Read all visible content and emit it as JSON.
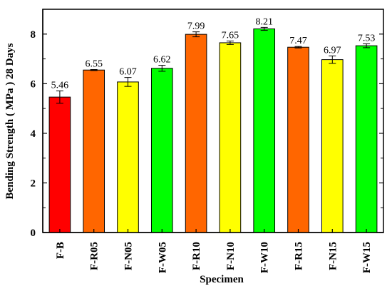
{
  "chart_data": {
    "type": "bar",
    "title": "",
    "xlabel": "Specimen",
    "ylabel": "Bending Strength ( MPa ) 28 Days",
    "ylim": [
      0,
      9
    ],
    "yticks": [
      0,
      2,
      4,
      6,
      8
    ],
    "grid": false,
    "categories": [
      "F-B",
      "F-R05",
      "F-N05",
      "F-W05",
      "F-R10",
      "F-N10",
      "F-W10",
      "F-R15",
      "F-N15",
      "F-W15"
    ],
    "values": [
      5.46,
      6.55,
      6.07,
      6.62,
      7.99,
      7.65,
      8.21,
      7.47,
      6.97,
      7.53
    ],
    "value_labels": [
      "5.46",
      "6.55",
      "6.07",
      "6.62",
      "7.99",
      "7.65",
      "8.21",
      "7.47",
      "6.97",
      "7.53"
    ],
    "errors": [
      0.25,
      0.02,
      0.18,
      0.12,
      0.1,
      0.07,
      0.06,
      0.03,
      0.15,
      0.08
    ],
    "bar_colors": [
      "#ff0000",
      "#ff6600",
      "#ffff00",
      "#00ff00",
      "#ff6600",
      "#ffff00",
      "#00ff00",
      "#ff6600",
      "#ffff00",
      "#00ff00"
    ],
    "axis_color": "#000000",
    "error_bars": true
  }
}
